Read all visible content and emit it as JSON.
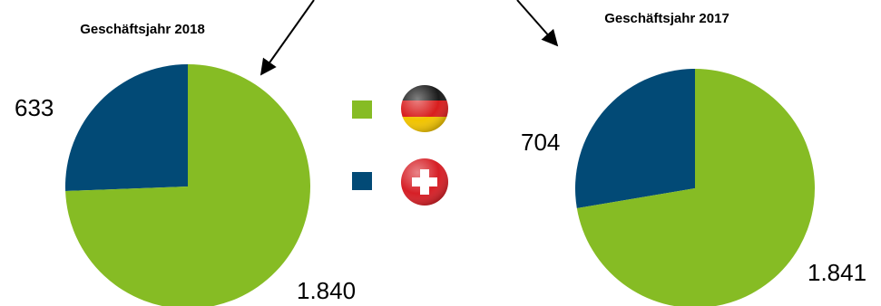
{
  "colors": {
    "germany": "#86bc24",
    "switzerland": "#024a76"
  },
  "legend": [
    {
      "icon": "germany-flag-ball-icon",
      "color": "#86bc24"
    },
    {
      "icon": "switzerland-flag-ball-icon",
      "color": "#024a76"
    }
  ],
  "chart_data": [
    {
      "type": "pie",
      "title": "Geschäftsjahr 2018",
      "slices": [
        {
          "value": 633,
          "label": "633",
          "color": "#024a76"
        },
        {
          "value": 1840,
          "label": "1.840",
          "color": "#86bc24"
        }
      ]
    },
    {
      "type": "pie",
      "title": "Geschäftsjahr 2017",
      "slices": [
        {
          "value": 704,
          "label": "704",
          "color": "#024a76"
        },
        {
          "value": 1841,
          "label": "1.841",
          "color": "#86bc24"
        }
      ]
    }
  ]
}
